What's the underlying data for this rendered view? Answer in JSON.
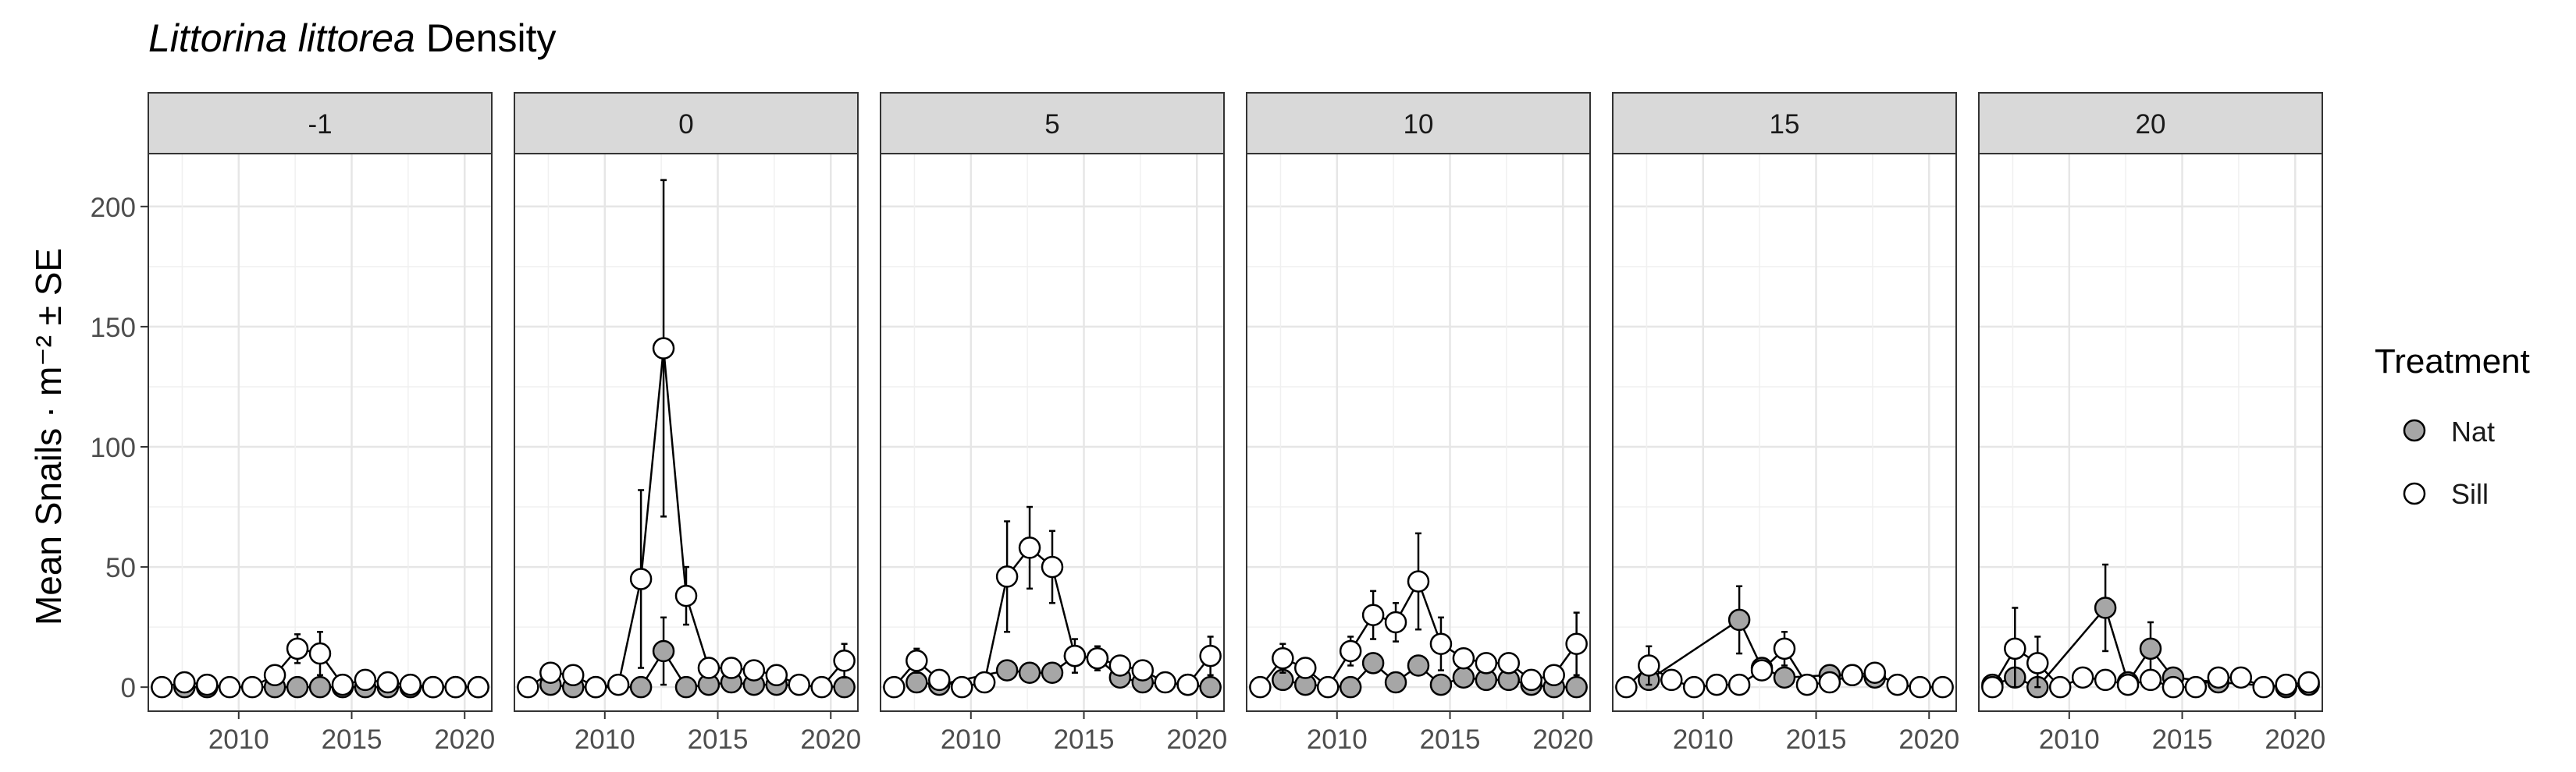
{
  "chart_data": {
    "type": "scatter",
    "title_italic": "Littorina littorea",
    "title_rest": " Density",
    "ylabel": "Mean Snails · m⁻² ± SE",
    "ylim": [
      -10,
      222
    ],
    "xlim": [
      2006,
      2021.2
    ],
    "yticks": [
      0,
      50,
      100,
      150,
      200
    ],
    "xticks": [
      2010,
      2015,
      2020
    ],
    "grid": true,
    "legend": {
      "title": "Treatment",
      "position": "right",
      "items": [
        {
          "key": "Nat",
          "label": "Nat",
          "fill": "#a6a6a6"
        },
        {
          "key": "Sill",
          "label": "Sill",
          "fill": "#ffffff"
        }
      ]
    },
    "panels": [
      {
        "label": "-1",
        "series": [
          {
            "name": "Nat",
            "points": [
              [
                2007.6,
                0
              ],
              [
                2008.6,
                0
              ],
              [
                2011.6,
                0
              ],
              [
                2012.6,
                0
              ],
              [
                2013.6,
                0
              ],
              [
                2014.6,
                0
              ],
              [
                2015.6,
                0
              ],
              [
                2016.6,
                0
              ],
              [
                2017.6,
                0
              ],
              [
                2018.6,
                0
              ],
              [
                2019.6,
                0
              ],
              [
                2020.6,
                0
              ]
            ]
          },
          {
            "name": "Sill",
            "points": [
              [
                2006.6,
                0,
                0
              ],
              [
                2007.6,
                2,
                0
              ],
              [
                2008.6,
                1,
                0
              ],
              [
                2009.6,
                0,
                0
              ],
              [
                2010.6,
                0,
                0
              ],
              [
                2011.6,
                5,
                0
              ],
              [
                2012.6,
                16,
                6
              ],
              [
                2013.6,
                14,
                9
              ],
              [
                2014.6,
                1,
                0
              ],
              [
                2015.6,
                3,
                0
              ],
              [
                2016.6,
                2,
                0
              ],
              [
                2017.6,
                1,
                0
              ],
              [
                2018.6,
                0,
                0
              ],
              [
                2019.6,
                0,
                0
              ],
              [
                2020.6,
                0,
                0
              ]
            ]
          }
        ]
      },
      {
        "label": "0",
        "series": [
          {
            "name": "Nat",
            "points": [
              [
                2007.6,
                1,
                0
              ],
              [
                2008.6,
                0,
                0
              ],
              [
                2009.6,
                0,
                0
              ],
              [
                2011.6,
                0,
                0
              ],
              [
                2012.6,
                15,
                14
              ],
              [
                2013.6,
                0,
                0
              ],
              [
                2014.6,
                1,
                0
              ],
              [
                2015.6,
                2,
                0
              ],
              [
                2016.6,
                1,
                0
              ],
              [
                2017.6,
                1,
                0
              ],
              [
                2020.6,
                0,
                0
              ]
            ]
          },
          {
            "name": "Sill",
            "points": [
              [
                2006.6,
                0,
                0
              ],
              [
                2007.6,
                6,
                0
              ],
              [
                2008.6,
                5,
                0
              ],
              [
                2009.6,
                0,
                0
              ],
              [
                2010.6,
                1,
                0
              ],
              [
                2011.6,
                45,
                37
              ],
              [
                2012.6,
                141,
                70
              ],
              [
                2013.6,
                38,
                12
              ],
              [
                2014.6,
                8,
                0
              ],
              [
                2015.6,
                8,
                0
              ],
              [
                2016.6,
                7,
                0
              ],
              [
                2017.6,
                5,
                0
              ],
              [
                2018.6,
                1,
                0
              ],
              [
                2019.6,
                0,
                0
              ],
              [
                2020.6,
                11,
                7
              ]
            ]
          }
        ]
      },
      {
        "label": "5",
        "series": [
          {
            "name": "Nat",
            "points": [
              [
                2007.6,
                2,
                0
              ],
              [
                2008.6,
                1,
                0
              ],
              [
                2011.6,
                7,
                0
              ],
              [
                2012.6,
                6,
                0
              ],
              [
                2013.6,
                6,
                0
              ],
              [
                2014.6,
                13,
                0
              ],
              [
                2015.6,
                12,
                0
              ],
              [
                2016.6,
                4,
                0
              ],
              [
                2017.6,
                2,
                0
              ],
              [
                2019.6,
                1,
                0
              ],
              [
                2020.6,
                0,
                0
              ]
            ]
          },
          {
            "name": "Sill",
            "points": [
              [
                2006.6,
                0,
                0
              ],
              [
                2007.6,
                11,
                5
              ],
              [
                2008.6,
                3,
                0
              ],
              [
                2009.6,
                0,
                0
              ],
              [
                2010.6,
                2,
                0
              ],
              [
                2011.6,
                46,
                23
              ],
              [
                2012.6,
                58,
                17
              ],
              [
                2013.6,
                50,
                15
              ],
              [
                2014.6,
                13,
                7
              ],
              [
                2015.6,
                12,
                5
              ],
              [
                2016.6,
                9,
                0
              ],
              [
                2017.6,
                7,
                0
              ],
              [
                2018.6,
                2,
                0
              ],
              [
                2019.6,
                1,
                0
              ],
              [
                2020.6,
                13,
                8
              ]
            ]
          }
        ]
      },
      {
        "label": "10",
        "series": [
          {
            "name": "Nat",
            "points": [
              [
                2007.6,
                3,
                0
              ],
              [
                2008.6,
                1,
                0
              ],
              [
                2010.6,
                0,
                0
              ],
              [
                2011.6,
                10,
                0
              ],
              [
                2012.6,
                2,
                0
              ],
              [
                2013.6,
                9,
                0
              ],
              [
                2014.6,
                1,
                0
              ],
              [
                2015.6,
                4,
                0
              ],
              [
                2016.6,
                3,
                0
              ],
              [
                2017.6,
                3,
                0
              ],
              [
                2018.6,
                1,
                0
              ],
              [
                2019.6,
                0,
                0
              ],
              [
                2020.6,
                0,
                0
              ]
            ]
          },
          {
            "name": "Sill",
            "points": [
              [
                2006.6,
                0,
                0
              ],
              [
                2007.6,
                12,
                6
              ],
              [
                2008.6,
                8,
                0
              ],
              [
                2009.6,
                0,
                0
              ],
              [
                2010.6,
                15,
                6
              ],
              [
                2011.6,
                30,
                10
              ],
              [
                2012.6,
                27,
                8
              ],
              [
                2013.6,
                44,
                20
              ],
              [
                2014.6,
                18,
                11
              ],
              [
                2015.6,
                12,
                4
              ],
              [
                2016.6,
                10,
                0
              ],
              [
                2017.6,
                10,
                0
              ],
              [
                2018.6,
                3,
                0
              ],
              [
                2019.6,
                5,
                0
              ],
              [
                2020.6,
                18,
                13
              ]
            ]
          }
        ]
      },
      {
        "label": "15",
        "series": [
          {
            "name": "Nat",
            "points": [
              [
                2007.6,
                3,
                0
              ],
              [
                2011.6,
                28,
                14
              ],
              [
                2012.6,
                8,
                0
              ],
              [
                2013.6,
                4,
                0
              ],
              [
                2015.6,
                5,
                0
              ],
              [
                2016.6,
                5,
                0
              ],
              [
                2017.6,
                4,
                0
              ]
            ]
          },
          {
            "name": "Sill",
            "points": [
              [
                2006.6,
                0,
                0
              ],
              [
                2007.6,
                9,
                8
              ],
              [
                2008.6,
                3,
                0
              ],
              [
                2009.6,
                0,
                0
              ],
              [
                2010.6,
                1,
                0
              ],
              [
                2011.6,
                1,
                0
              ],
              [
                2012.6,
                7,
                0
              ],
              [
                2013.6,
                16,
                7
              ],
              [
                2014.6,
                1,
                0
              ],
              [
                2015.6,
                2,
                0
              ],
              [
                2016.6,
                5,
                0
              ],
              [
                2017.6,
                6,
                0
              ],
              [
                2018.6,
                1,
                0
              ],
              [
                2019.6,
                0,
                0
              ],
              [
                2020.6,
                0,
                0
              ]
            ]
          }
        ]
      },
      {
        "label": "20",
        "series": [
          {
            "name": "Nat",
            "points": [
              [
                2006.6,
                1,
                0
              ],
              [
                2007.6,
                4,
                0
              ],
              [
                2008.6,
                0,
                0
              ],
              [
                2011.6,
                33,
                18
              ],
              [
                2012.6,
                2,
                0
              ],
              [
                2013.6,
                16,
                11
              ],
              [
                2014.6,
                4,
                0
              ],
              [
                2016.6,
                2,
                0
              ],
              [
                2019.6,
                0,
                0
              ],
              [
                2020.6,
                1,
                0
              ]
            ]
          },
          {
            "name": "Sill",
            "points": [
              [
                2006.6,
                0,
                0
              ],
              [
                2007.6,
                16,
                17
              ],
              [
                2008.6,
                10,
                11
              ],
              [
                2009.6,
                0,
                0
              ],
              [
                2010.6,
                4,
                0
              ],
              [
                2011.6,
                3,
                0
              ],
              [
                2012.6,
                1,
                0
              ],
              [
                2013.6,
                3,
                0
              ],
              [
                2014.6,
                0,
                0
              ],
              [
                2015.6,
                0,
                0
              ],
              [
                2016.6,
                4,
                0
              ],
              [
                2017.6,
                4,
                0
              ],
              [
                2018.6,
                0,
                0
              ],
              [
                2019.6,
                1,
                0
              ],
              [
                2020.6,
                2,
                0
              ]
            ]
          }
        ]
      }
    ]
  }
}
